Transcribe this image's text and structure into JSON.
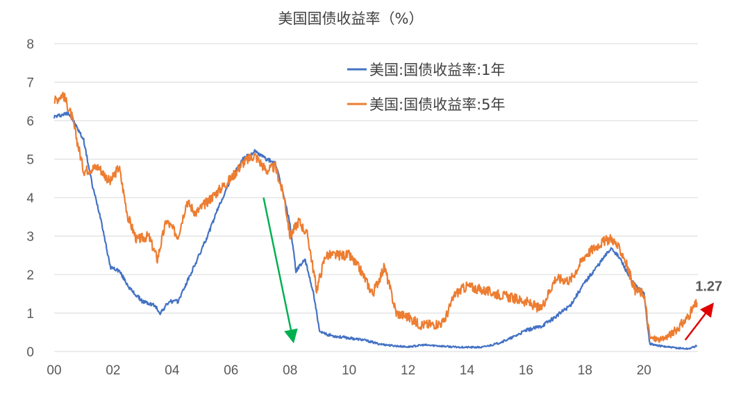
{
  "chart_data": {
    "type": "line",
    "title": "美国国债收益率（%）",
    "ylim": [
      0,
      8
    ],
    "y_ticks": [
      "0",
      "1",
      "2",
      "3",
      "4",
      "5",
      "6",
      "7",
      "8"
    ],
    "x_ticks": [
      "00",
      "02",
      "04",
      "06",
      "08",
      "10",
      "12",
      "14",
      "16",
      "18",
      "20"
    ],
    "grid": "horizontal",
    "legend_position": "top-right",
    "series": [
      {
        "name": "美国:国债收益率:1年",
        "color": "#4472C4",
        "x": [
          2000.0,
          2000.5,
          2001.0,
          2001.3,
          2001.6,
          2001.9,
          2002.2,
          2002.6,
          2003.0,
          2003.4,
          2003.6,
          2003.9,
          2004.2,
          2004.5,
          2004.8,
          2005.2,
          2005.6,
          2006.0,
          2006.4,
          2006.8,
          2007.2,
          2007.5,
          2007.8,
          2008.0,
          2008.2,
          2008.5,
          2008.8,
          2009.0,
          2009.5,
          2010.0,
          2010.5,
          2011.0,
          2011.5,
          2012.0,
          2012.5,
          2013.0,
          2013.5,
          2014.0,
          2014.5,
          2015.0,
          2015.5,
          2016.0,
          2016.5,
          2017.0,
          2017.5,
          2018.0,
          2018.5,
          2018.9,
          2019.2,
          2019.6,
          2020.0,
          2020.2,
          2020.5,
          2021.0,
          2021.5,
          2021.8
        ],
        "values": [
          6.1,
          6.2,
          5.5,
          4.3,
          3.4,
          2.2,
          2.1,
          1.6,
          1.3,
          1.2,
          1.0,
          1.3,
          1.3,
          1.8,
          2.3,
          3.0,
          3.8,
          4.5,
          5.0,
          5.2,
          5.0,
          4.9,
          4.0,
          3.3,
          2.1,
          2.4,
          1.5,
          0.5,
          0.4,
          0.35,
          0.3,
          0.2,
          0.15,
          0.12,
          0.17,
          0.15,
          0.12,
          0.11,
          0.11,
          0.2,
          0.35,
          0.55,
          0.65,
          0.9,
          1.2,
          1.8,
          2.3,
          2.7,
          2.4,
          1.8,
          1.5,
          0.2,
          0.15,
          0.1,
          0.07,
          0.15
        ]
      },
      {
        "name": "美国:国债收益率:5年",
        "color": "#ED7D31",
        "x": [
          2000.0,
          2000.3,
          2000.6,
          2001.0,
          2001.5,
          2001.9,
          2002.2,
          2002.5,
          2002.8,
          2003.2,
          2003.5,
          2003.8,
          2004.2,
          2004.5,
          2004.8,
          2005.2,
          2005.6,
          2006.0,
          2006.4,
          2006.8,
          2007.2,
          2007.5,
          2007.8,
          2008.0,
          2008.3,
          2008.6,
          2008.9,
          2009.2,
          2009.6,
          2010.0,
          2010.4,
          2010.8,
          2011.2,
          2011.6,
          2012.0,
          2012.4,
          2012.8,
          2013.2,
          2013.6,
          2014.0,
          2014.5,
          2015.0,
          2015.5,
          2016.0,
          2016.5,
          2017.0,
          2017.5,
          2018.0,
          2018.5,
          2018.9,
          2019.3,
          2019.7,
          2020.0,
          2020.2,
          2020.6,
          2021.0,
          2021.4,
          2021.8
        ],
        "values": [
          6.5,
          6.7,
          6.1,
          4.7,
          4.8,
          4.4,
          4.8,
          3.5,
          2.9,
          3.0,
          2.4,
          3.4,
          3.0,
          3.9,
          3.6,
          3.9,
          4.2,
          4.5,
          4.9,
          5.1,
          4.7,
          4.8,
          4.0,
          3.0,
          3.4,
          3.0,
          1.6,
          2.5,
          2.5,
          2.5,
          2.1,
          1.5,
          2.2,
          1.0,
          0.9,
          0.7,
          0.7,
          0.75,
          1.5,
          1.7,
          1.6,
          1.5,
          1.4,
          1.3,
          1.1,
          1.9,
          1.85,
          2.5,
          2.8,
          2.95,
          2.5,
          1.6,
          1.5,
          0.35,
          0.3,
          0.5,
          0.8,
          1.27
        ]
      }
    ],
    "annotations": [
      {
        "type": "arrow",
        "color": "#00B050",
        "from": [
          2007.1,
          4.0
        ],
        "to": [
          2008.1,
          0.3
        ]
      },
      {
        "type": "arrow",
        "color": "#E00000",
        "from": [
          2021.4,
          0.3
        ],
        "to": [
          2022.3,
          1.2
        ]
      },
      {
        "type": "label",
        "text": "1.27",
        "x": 2022.2,
        "y": 1.7
      }
    ]
  }
}
